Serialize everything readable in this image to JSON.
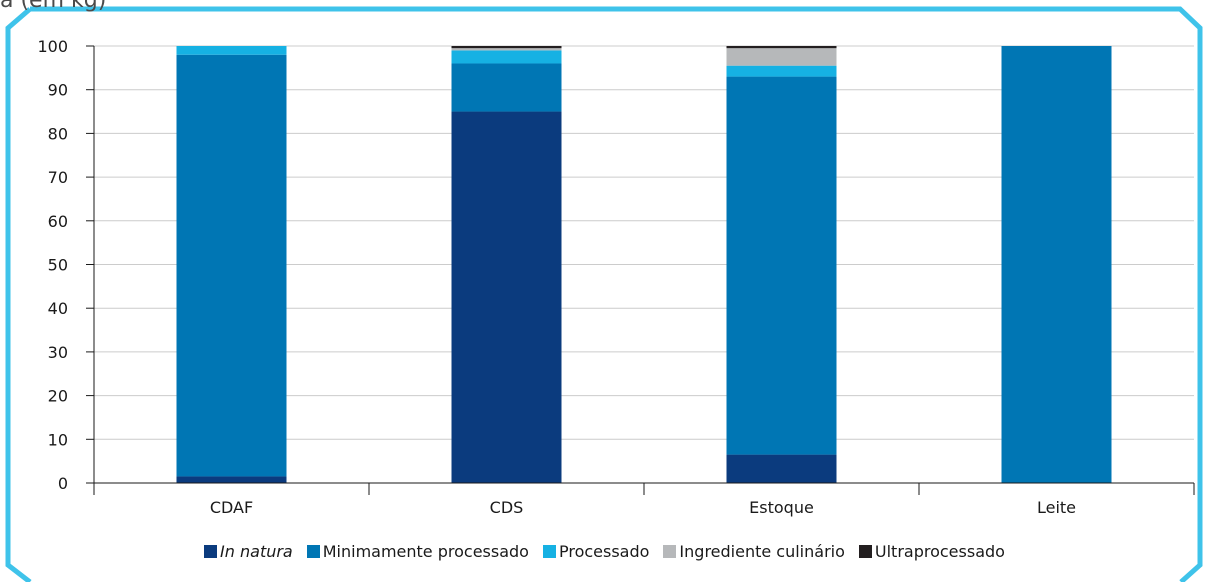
{
  "caption_fragment": "a (em kg)",
  "colors": {
    "frame": "#3fc3ea",
    "in_natura": "#0b3b7e",
    "minimamente": "#0076b4",
    "processado": "#16b1e3",
    "ingrediente": "#b6b8ba",
    "ultra": "#231f20",
    "grid": "#cccccc"
  },
  "chart_data": {
    "type": "bar",
    "stacked": true,
    "categories": [
      "CDAF",
      "CDS",
      "Estoque",
      "Leite"
    ],
    "ylim": [
      0,
      100
    ],
    "yticks": [
      "0",
      "10",
      "20",
      "30",
      "40",
      "50",
      "60",
      "70",
      "80",
      "90",
      "100"
    ],
    "grid": true,
    "legend_position": "bottom",
    "series": [
      {
        "name": "In natura",
        "italic": true,
        "color": "#0b3b7e",
        "values": [
          1.5,
          85,
          6.5,
          0
        ]
      },
      {
        "name": "Minimamente processado",
        "italic": false,
        "color": "#0076b4",
        "values": [
          96.5,
          11,
          86.5,
          100
        ]
      },
      {
        "name": "Processado",
        "italic": false,
        "color": "#16b1e3",
        "values": [
          2,
          3,
          2.5,
          0
        ]
      },
      {
        "name": "Ingrediente culinário",
        "italic": false,
        "color": "#b6b8ba",
        "values": [
          0,
          0.5,
          4,
          0
        ]
      },
      {
        "name": "Ultraprocessado",
        "italic": false,
        "color": "#231f20",
        "values": [
          0,
          0.5,
          0.5,
          0
        ]
      }
    ]
  }
}
